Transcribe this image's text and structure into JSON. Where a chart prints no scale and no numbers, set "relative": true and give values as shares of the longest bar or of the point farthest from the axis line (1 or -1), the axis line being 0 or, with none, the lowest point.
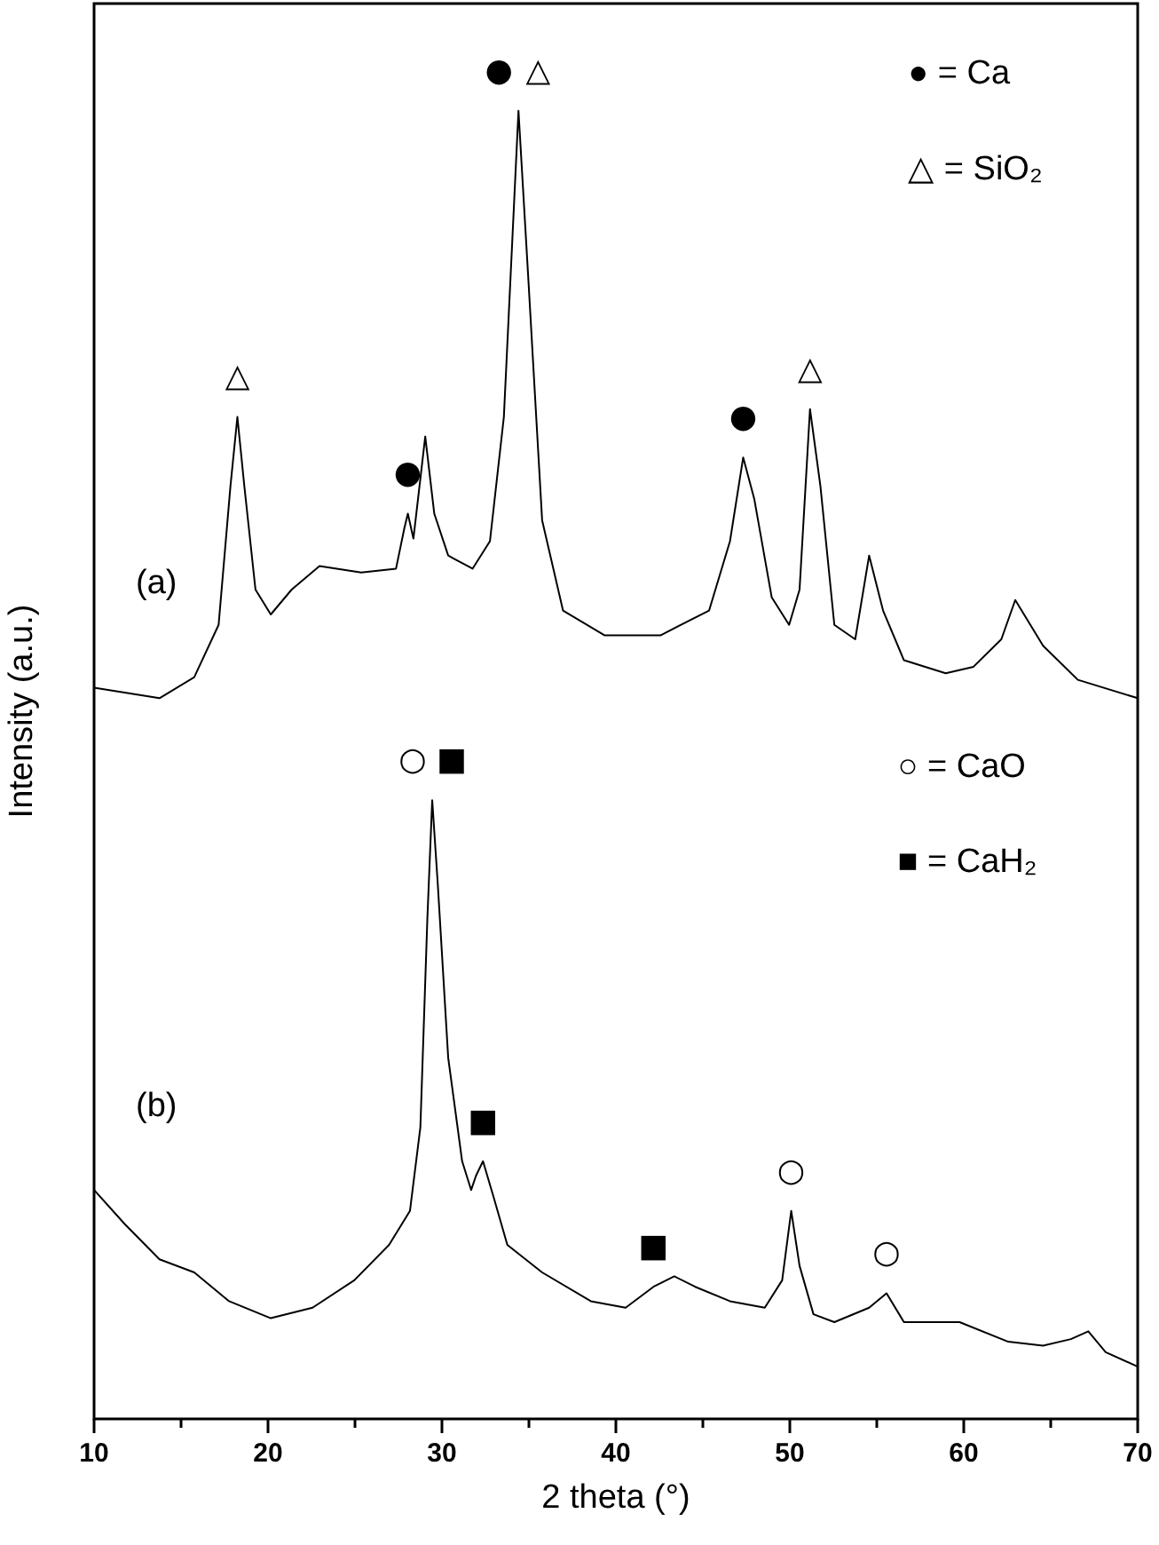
{
  "chart_data": {
    "type": "line",
    "xlabel": "2 theta (°)",
    "ylabel": "Intensity (a.u.)",
    "relative": true,
    "xlim": [
      10,
      70
    ],
    "xticks": [
      10,
      {
        "value": 15,
        "label": null
      },
      20,
      {
        "value": 25,
        "label": null
      },
      30,
      {
        "value": 35,
        "label": null
      },
      40,
      {
        "value": 45,
        "label": null
      },
      50,
      {
        "value": 55,
        "label": null
      },
      60,
      {
        "value": 65,
        "label": null
      },
      70
    ],
    "series": [
      {
        "color": "#000000",
        "x": [
          10,
          13.76,
          15.76,
          17.16,
          17.84,
          18.24,
          18.64,
          19.28,
          20.16,
          21.36,
          22.96,
          25.36,
          27.36,
          27.84,
          28.04,
          28.36,
          29.04,
          29.56,
          30.36,
          31.76,
          32.76,
          33.56,
          34.4,
          34.96,
          35.76,
          36.96,
          39.36,
          42.56,
          45.36,
          46.56,
          47.32,
          47.96,
          48.96,
          49.96,
          50.56,
          51.16,
          51.76,
          52.56,
          53.76,
          54.56,
          55.36,
          56.56,
          58.96,
          60.56,
          62.16,
          62.96,
          64.56,
          66.56,
          70
        ],
        "values": [
          0.559,
          0.551,
          0.567,
          0.607,
          0.713,
          0.766,
          0.713,
          0.634,
          0.615,
          0.634,
          0.652,
          0.647,
          0.65,
          0.681,
          0.692,
          0.673,
          0.751,
          0.692,
          0.66,
          0.65,
          0.671,
          0.766,
          1.0,
          0.873,
          0.687,
          0.618,
          0.599,
          0.599,
          0.618,
          0.671,
          0.735,
          0.703,
          0.628,
          0.607,
          0.634,
          0.772,
          0.713,
          0.607,
          0.596,
          0.66,
          0.618,
          0.58,
          0.57,
          0.575,
          0.596,
          0.626,
          0.591,
          0.565,
          0.551
        ]
      },
      {
        "color": "#000000",
        "x": [
          10,
          11.76,
          13.76,
          15.76,
          17.76,
          20.16,
          22.56,
          24.96,
          26.96,
          28.16,
          28.76,
          29.16,
          29.44,
          29.76,
          30.36,
          31.16,
          31.68,
          31.96,
          32.36,
          32.96,
          33.76,
          35.76,
          38.56,
          40.56,
          42.16,
          43.36,
          44.56,
          46.56,
          48.56,
          49.56,
          50.08,
          50.56,
          51.36,
          52.56,
          54.56,
          55.56,
          56.56,
          59.76,
          62.56,
          64.56,
          66.16,
          67.16,
          68.16,
          70
        ],
        "values": [
          0.175,
          0.149,
          0.122,
          0.112,
          0.09,
          0.077,
          0.085,
          0.106,
          0.133,
          0.159,
          0.223,
          0.382,
          0.473,
          0.409,
          0.276,
          0.197,
          0.175,
          0.186,
          0.197,
          0.17,
          0.133,
          0.112,
          0.09,
          0.085,
          0.101,
          0.109,
          0.101,
          0.09,
          0.085,
          0.106,
          0.159,
          0.117,
          0.08,
          0.074,
          0.085,
          0.096,
          0.074,
          0.074,
          0.059,
          0.056,
          0.061,
          0.067,
          0.051,
          0.04
        ]
      }
    ],
    "annotations": [
      "● = Ca",
      "△ = SiO₂",
      "○ = CaO",
      "■ = CaH₂",
      "(a)",
      "(b)",
      {
        "text": "●",
        "x": 34.4,
        "y": 1.0
      },
      {
        "text": "△",
        "x": 34.4,
        "y": 1.0
      },
      {
        "text": "△",
        "x": 18.24,
        "y": 0.766
      },
      {
        "text": "●",
        "x": 28.04,
        "y": 0.692
      },
      {
        "text": "●",
        "x": 47.32,
        "y": 0.735
      },
      {
        "text": "△",
        "x": 51.16,
        "y": 0.772
      },
      {
        "text": "○",
        "x": 29.44,
        "y": 0.473
      },
      {
        "text": "■",
        "x": 29.44,
        "y": 0.473
      },
      {
        "text": "■",
        "x": 32.36,
        "y": 0.197
      },
      {
        "text": "■",
        "x": 42.16,
        "y": 0.101
      },
      {
        "text": "○",
        "x": 50.08,
        "y": 0.159
      },
      {
        "text": "○",
        "x": 55.56,
        "y": 0.096
      }
    ]
  }
}
